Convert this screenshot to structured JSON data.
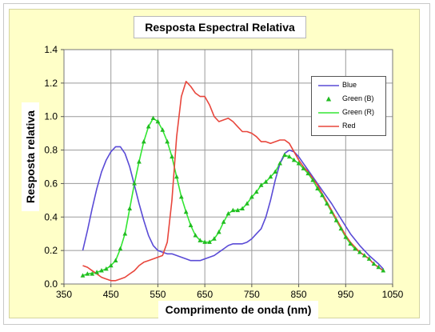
{
  "chart_data": {
    "type": "line",
    "title": "Resposta Espectral Relativa",
    "xlabel": "Comprimento de onda (nm)",
    "ylabel": "Resposta relativa",
    "xlim": [
      350,
      1050
    ],
    "ylim": [
      0,
      1.4
    ],
    "xticks": [
      "350",
      "450",
      "550",
      "650",
      "750",
      "850",
      "950",
      "1050"
    ],
    "yticks": [
      "0.0",
      "0.2",
      "0.4",
      "0.6",
      "0.8",
      "1.0",
      "1.2",
      "1.4"
    ],
    "grid": true,
    "legend_position": "top-right",
    "series": [
      {
        "name": "Blue",
        "style": "line",
        "color": "#5a4bd6",
        "points": [
          [
            390,
            0.2
          ],
          [
            400,
            0.32
          ],
          [
            410,
            0.45
          ],
          [
            420,
            0.57
          ],
          [
            430,
            0.67
          ],
          [
            440,
            0.74
          ],
          [
            450,
            0.79
          ],
          [
            460,
            0.82
          ],
          [
            470,
            0.82
          ],
          [
            480,
            0.78
          ],
          [
            490,
            0.7
          ],
          [
            500,
            0.59
          ],
          [
            510,
            0.48
          ],
          [
            520,
            0.38
          ],
          [
            530,
            0.29
          ],
          [
            540,
            0.23
          ],
          [
            550,
            0.2
          ],
          [
            560,
            0.19
          ],
          [
            570,
            0.18
          ],
          [
            580,
            0.18
          ],
          [
            590,
            0.17
          ],
          [
            600,
            0.16
          ],
          [
            610,
            0.15
          ],
          [
            620,
            0.14
          ],
          [
            630,
            0.14
          ],
          [
            640,
            0.14
          ],
          [
            650,
            0.15
          ],
          [
            660,
            0.16
          ],
          [
            670,
            0.17
          ],
          [
            680,
            0.19
          ],
          [
            690,
            0.21
          ],
          [
            700,
            0.23
          ],
          [
            710,
            0.24
          ],
          [
            720,
            0.24
          ],
          [
            730,
            0.24
          ],
          [
            740,
            0.25
          ],
          [
            750,
            0.27
          ],
          [
            760,
            0.3
          ],
          [
            770,
            0.33
          ],
          [
            780,
            0.4
          ],
          [
            790,
            0.5
          ],
          [
            800,
            0.62
          ],
          [
            810,
            0.72
          ],
          [
            820,
            0.78
          ],
          [
            830,
            0.8
          ],
          [
            840,
            0.79
          ],
          [
            850,
            0.76
          ],
          [
            860,
            0.72
          ],
          [
            880,
            0.64
          ],
          [
            900,
            0.56
          ],
          [
            920,
            0.48
          ],
          [
            940,
            0.39
          ],
          [
            960,
            0.3
          ],
          [
            980,
            0.23
          ],
          [
            1000,
            0.17
          ],
          [
            1020,
            0.12
          ],
          [
            1030,
            0.09
          ]
        ]
      },
      {
        "name": "Green (B)",
        "style": "marker",
        "color": "#22bb22",
        "points": [
          [
            390,
            0.05
          ],
          [
            400,
            0.06
          ],
          [
            410,
            0.06
          ],
          [
            420,
            0.07
          ],
          [
            430,
            0.08
          ],
          [
            440,
            0.09
          ],
          [
            450,
            0.11
          ],
          [
            460,
            0.14
          ],
          [
            470,
            0.21
          ],
          [
            480,
            0.3
          ],
          [
            490,
            0.45
          ],
          [
            500,
            0.6
          ],
          [
            510,
            0.73
          ],
          [
            520,
            0.85
          ],
          [
            530,
            0.94
          ],
          [
            540,
            0.99
          ],
          [
            550,
            0.97
          ],
          [
            560,
            0.92
          ],
          [
            570,
            0.85
          ],
          [
            580,
            0.76
          ],
          [
            590,
            0.64
          ],
          [
            600,
            0.52
          ],
          [
            610,
            0.43
          ],
          [
            620,
            0.35
          ],
          [
            630,
            0.29
          ],
          [
            640,
            0.26
          ],
          [
            650,
            0.25
          ],
          [
            660,
            0.25
          ],
          [
            670,
            0.27
          ],
          [
            680,
            0.31
          ],
          [
            690,
            0.37
          ],
          [
            700,
            0.42
          ],
          [
            710,
            0.44
          ],
          [
            720,
            0.44
          ],
          [
            730,
            0.45
          ],
          [
            740,
            0.48
          ],
          [
            750,
            0.52
          ],
          [
            760,
            0.55
          ],
          [
            770,
            0.59
          ],
          [
            780,
            0.61
          ],
          [
            790,
            0.64
          ],
          [
            800,
            0.67
          ],
          [
            810,
            0.72
          ],
          [
            820,
            0.77
          ],
          [
            830,
            0.76
          ],
          [
            840,
            0.74
          ],
          [
            850,
            0.72
          ],
          [
            860,
            0.69
          ],
          [
            870,
            0.66
          ],
          [
            880,
            0.62
          ],
          [
            890,
            0.57
          ],
          [
            900,
            0.53
          ],
          [
            910,
            0.48
          ],
          [
            920,
            0.43
          ],
          [
            930,
            0.38
          ],
          [
            940,
            0.33
          ],
          [
            950,
            0.28
          ],
          [
            960,
            0.24
          ],
          [
            970,
            0.21
          ],
          [
            980,
            0.19
          ],
          [
            990,
            0.17
          ],
          [
            1000,
            0.15
          ],
          [
            1010,
            0.12
          ],
          [
            1020,
            0.1
          ],
          [
            1030,
            0.08
          ]
        ]
      },
      {
        "name": "Green (R)",
        "style": "line",
        "color": "#33e633",
        "points": [
          [
            390,
            0.05
          ],
          [
            400,
            0.06
          ],
          [
            420,
            0.07
          ],
          [
            440,
            0.09
          ],
          [
            450,
            0.11
          ],
          [
            460,
            0.14
          ],
          [
            470,
            0.21
          ],
          [
            480,
            0.3
          ],
          [
            490,
            0.45
          ],
          [
            500,
            0.6
          ],
          [
            510,
            0.73
          ],
          [
            520,
            0.85
          ],
          [
            530,
            0.94
          ],
          [
            540,
            0.99
          ],
          [
            550,
            0.97
          ],
          [
            560,
            0.92
          ],
          [
            570,
            0.85
          ],
          [
            580,
            0.76
          ],
          [
            590,
            0.64
          ],
          [
            600,
            0.52
          ],
          [
            610,
            0.43
          ],
          [
            620,
            0.35
          ],
          [
            630,
            0.29
          ],
          [
            640,
            0.26
          ],
          [
            650,
            0.25
          ],
          [
            660,
            0.25
          ],
          [
            670,
            0.27
          ],
          [
            680,
            0.31
          ],
          [
            690,
            0.37
          ],
          [
            700,
            0.42
          ],
          [
            710,
            0.44
          ],
          [
            720,
            0.44
          ],
          [
            730,
            0.45
          ],
          [
            740,
            0.48
          ],
          [
            750,
            0.52
          ],
          [
            760,
            0.55
          ],
          [
            770,
            0.59
          ],
          [
            780,
            0.61
          ],
          [
            790,
            0.64
          ],
          [
            800,
            0.67
          ],
          [
            810,
            0.72
          ],
          [
            820,
            0.77
          ],
          [
            830,
            0.76
          ],
          [
            840,
            0.74
          ],
          [
            850,
            0.72
          ],
          [
            860,
            0.69
          ],
          [
            870,
            0.66
          ],
          [
            880,
            0.62
          ],
          [
            890,
            0.57
          ],
          [
            900,
            0.53
          ],
          [
            910,
            0.48
          ],
          [
            920,
            0.43
          ],
          [
            930,
            0.38
          ],
          [
            940,
            0.33
          ],
          [
            950,
            0.28
          ],
          [
            960,
            0.24
          ],
          [
            970,
            0.21
          ],
          [
            980,
            0.19
          ],
          [
            990,
            0.17
          ],
          [
            1000,
            0.15
          ],
          [
            1010,
            0.12
          ],
          [
            1020,
            0.1
          ],
          [
            1030,
            0.08
          ]
        ]
      },
      {
        "name": "Red",
        "style": "line",
        "color": "#e8463c",
        "points": [
          [
            390,
            0.11
          ],
          [
            400,
            0.1
          ],
          [
            410,
            0.08
          ],
          [
            420,
            0.06
          ],
          [
            430,
            0.04
          ],
          [
            440,
            0.03
          ],
          [
            450,
            0.02
          ],
          [
            460,
            0.02
          ],
          [
            470,
            0.03
          ],
          [
            480,
            0.04
          ],
          [
            490,
            0.06
          ],
          [
            500,
            0.08
          ],
          [
            510,
            0.11
          ],
          [
            520,
            0.13
          ],
          [
            530,
            0.14
          ],
          [
            540,
            0.15
          ],
          [
            550,
            0.16
          ],
          [
            560,
            0.17
          ],
          [
            570,
            0.25
          ],
          [
            580,
            0.5
          ],
          [
            590,
            0.88
          ],
          [
            600,
            1.12
          ],
          [
            610,
            1.21
          ],
          [
            620,
            1.18
          ],
          [
            630,
            1.14
          ],
          [
            640,
            1.12
          ],
          [
            650,
            1.12
          ],
          [
            660,
            1.07
          ],
          [
            670,
            1.0
          ],
          [
            680,
            0.97
          ],
          [
            690,
            0.98
          ],
          [
            700,
            0.99
          ],
          [
            710,
            0.97
          ],
          [
            720,
            0.94
          ],
          [
            730,
            0.91
          ],
          [
            740,
            0.91
          ],
          [
            750,
            0.9
          ],
          [
            760,
            0.88
          ],
          [
            770,
            0.85
          ],
          [
            780,
            0.85
          ],
          [
            790,
            0.84
          ],
          [
            800,
            0.85
          ],
          [
            810,
            0.86
          ],
          [
            820,
            0.86
          ],
          [
            830,
            0.84
          ],
          [
            840,
            0.79
          ],
          [
            850,
            0.74
          ],
          [
            860,
            0.7
          ],
          [
            870,
            0.67
          ],
          [
            880,
            0.63
          ],
          [
            890,
            0.59
          ],
          [
            900,
            0.54
          ],
          [
            910,
            0.49
          ],
          [
            920,
            0.44
          ],
          [
            930,
            0.39
          ],
          [
            940,
            0.34
          ],
          [
            950,
            0.29
          ],
          [
            960,
            0.25
          ],
          [
            970,
            0.22
          ],
          [
            980,
            0.19
          ],
          [
            990,
            0.17
          ],
          [
            1000,
            0.15
          ],
          [
            1010,
            0.12
          ],
          [
            1020,
            0.1
          ],
          [
            1030,
            0.08
          ]
        ]
      }
    ]
  }
}
